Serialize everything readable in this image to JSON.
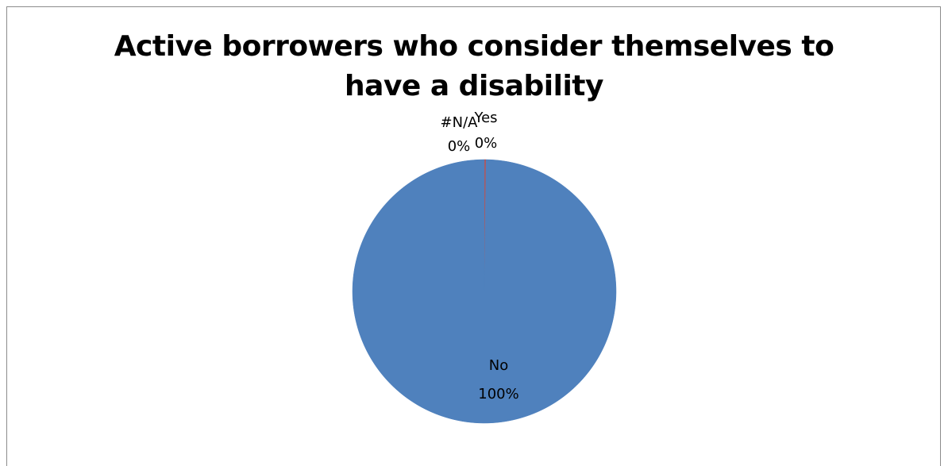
{
  "chart_data": {
    "type": "pie",
    "title": "Active borrowers who consider themselves to have a disability",
    "slices": [
      {
        "label": "Yes",
        "value": 0.2,
        "percent_label": "0%",
        "color": "#c0504d"
      },
      {
        "label": "#N/A",
        "value": 0.0,
        "percent_label": "0%",
        "color": "#9bbb59"
      },
      {
        "label": "No",
        "value": 99.8,
        "percent_label": "100%",
        "color": "#4f81bd"
      }
    ],
    "legend": "none"
  }
}
